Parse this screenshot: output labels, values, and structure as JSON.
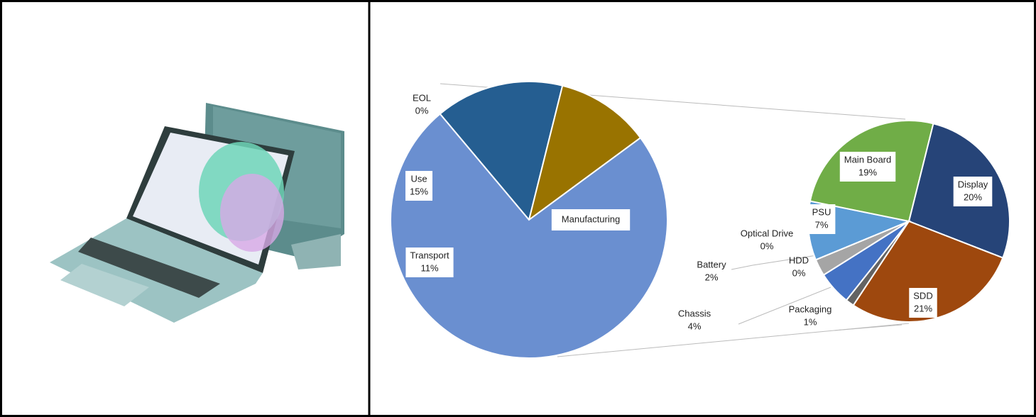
{
  "chart_data": [
    {
      "type": "pie",
      "categories": [
        "EOL",
        "Use",
        "Transport",
        "Manufacturing"
      ],
      "values": [
        0,
        15,
        11,
        74
      ],
      "value_labels": [
        "0%",
        "15%",
        "11%",
        null
      ],
      "colors": [
        "#ffffff",
        "#255e91",
        "#997300",
        "#6a8fd0"
      ]
    },
    {
      "type": "pie",
      "categories": [
        "Display",
        "SDD",
        "Packaging",
        "Chassis",
        "HDD",
        "Battery",
        "Optical Drive",
        "PSU",
        "Main Board"
      ],
      "values": [
        20,
        21,
        1,
        4,
        0,
        2,
        0,
        7,
        19
      ],
      "value_labels": [
        "20%",
        "21%",
        "1%",
        "4%",
        "0%",
        "2%",
        "0%",
        "7%",
        "19%"
      ],
      "colors": [
        "#264478",
        "#9e480e",
        "#636363",
        "#4472c4",
        "#cccccc",
        "#a5a5a5",
        "#7f7f7f",
        "#5b9bd5",
        "#70ad47"
      ]
    }
  ]
}
